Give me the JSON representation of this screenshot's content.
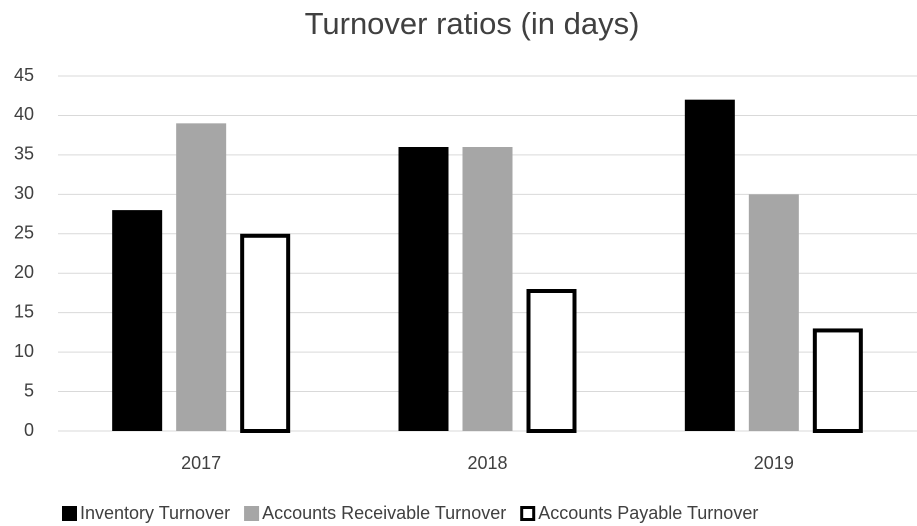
{
  "chart_data": {
    "type": "bar",
    "title": "Turnover ratios (in days)",
    "categories": [
      "2017",
      "2018",
      "2019"
    ],
    "series": [
      {
        "name": "Inventory Turnover",
        "color": "#000000",
        "outline": false,
        "values": [
          28,
          36,
          42
        ]
      },
      {
        "name": "Accounts Receivable Turnover",
        "color": "#a6a6a6",
        "outline": false,
        "values": [
          39,
          36,
          30
        ]
      },
      {
        "name": "Accounts Payable Turnover",
        "color": "#000000",
        "outline": true,
        "values": [
          25,
          18,
          13
        ]
      }
    ],
    "ylim": [
      0,
      45
    ],
    "yticks": [
      0,
      5,
      10,
      15,
      20,
      25,
      30,
      35,
      40,
      45
    ],
    "grid": true,
    "legend": "bottom"
  }
}
